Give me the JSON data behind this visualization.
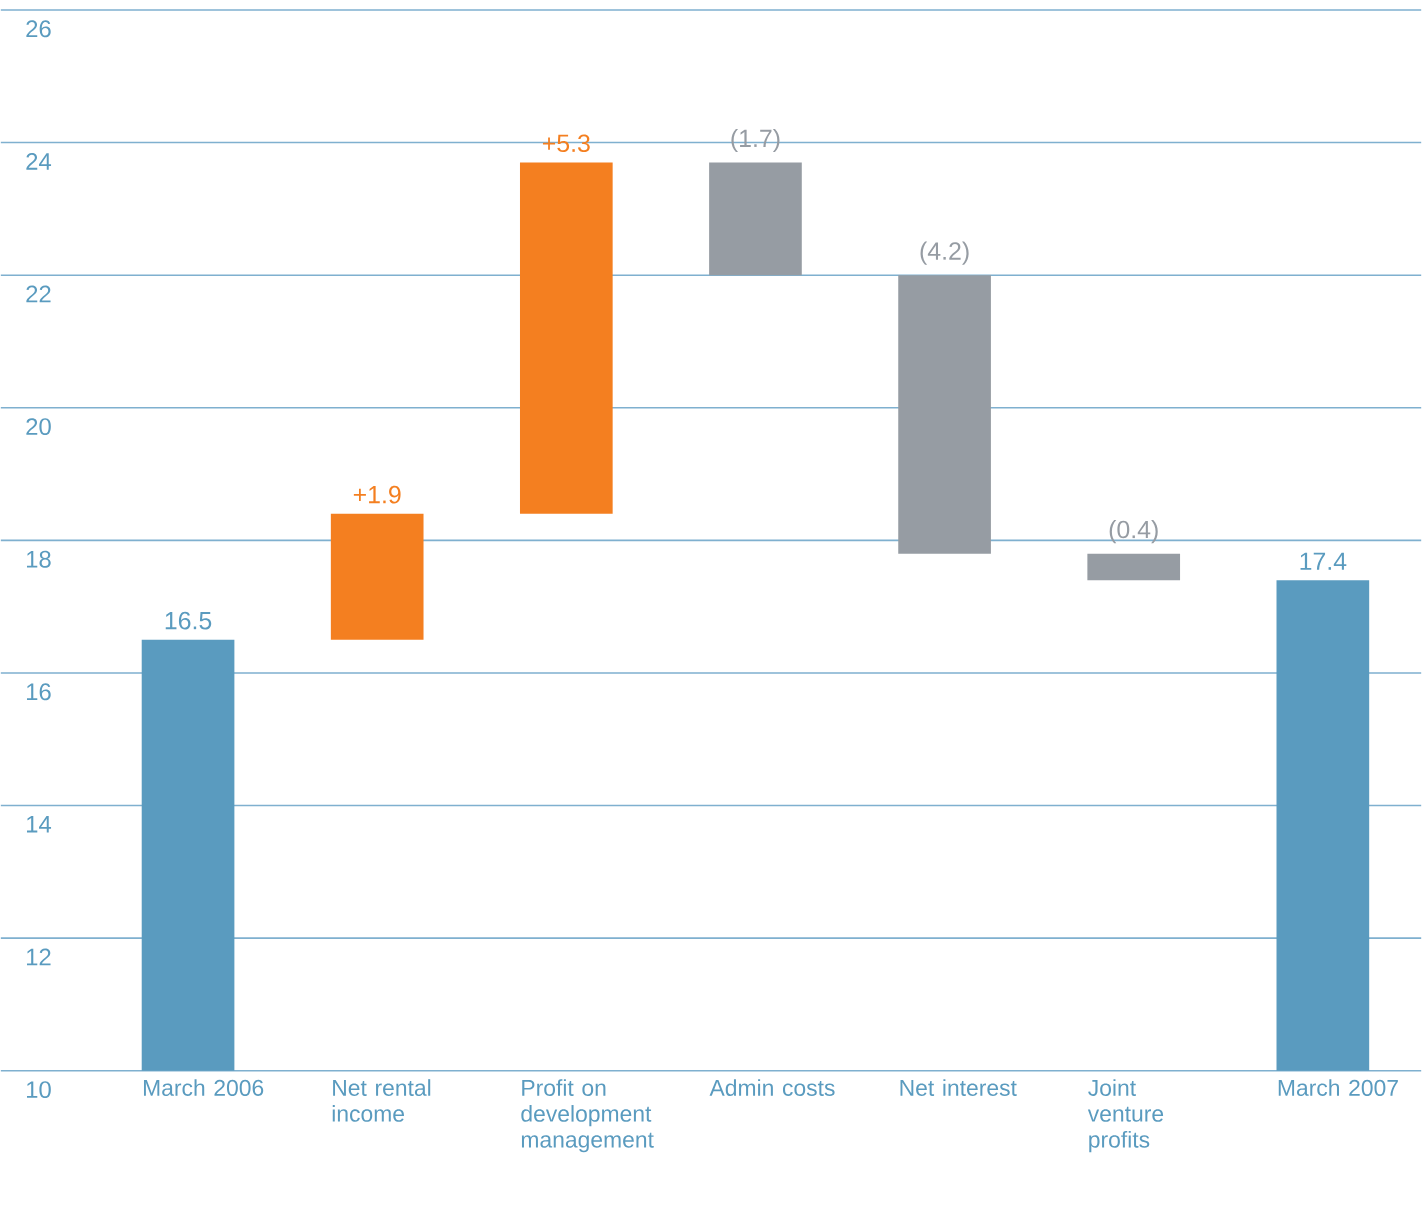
{
  "chart_data": {
    "type": "bar",
    "categories": [
      "March 2006",
      "Net rental income",
      "Profit on development management",
      "Admin costs",
      "Net interest",
      "Joint venture profits",
      "March 2007"
    ],
    "values": [
      16.5,
      1.9,
      5.3,
      -1.7,
      -4.2,
      -0.4,
      17.4
    ],
    "base": [
      null,
      16.5,
      18.4,
      23.7,
      22.0,
      17.8,
      null
    ],
    "colors": [
      "#5a9bbf",
      "#f47f20",
      "#f47f20",
      "#969ca3",
      "#969ca3",
      "#969ca3",
      "#5a9bbf"
    ],
    "value_labels": [
      "16.5",
      "+1.9",
      "+5.3",
      "(1.7)",
      "(4.2)",
      "(0.4)",
      "17.4"
    ],
    "ylim": [
      10,
      26
    ],
    "yticks": [
      10,
      12,
      14,
      16,
      18,
      20,
      22,
      24,
      26
    ],
    "grid": "y"
  }
}
